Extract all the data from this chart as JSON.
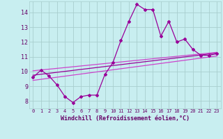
{
  "xlabel": "Windchill (Refroidissement éolien,°C)",
  "xlim": [
    -0.5,
    23.5
  ],
  "ylim": [
    7.5,
    14.75
  ],
  "yticks": [
    8,
    9,
    10,
    11,
    12,
    13,
    14
  ],
  "xticks": [
    0,
    1,
    2,
    3,
    4,
    5,
    6,
    7,
    8,
    9,
    10,
    11,
    12,
    13,
    14,
    15,
    16,
    17,
    18,
    19,
    20,
    21,
    22,
    23
  ],
  "bg_color": "#c8eef0",
  "grid_color": "#a8cece",
  "line_color": "#990099",
  "line_color2": "#cc44cc",
  "series1_x": [
    0,
    1,
    2,
    3,
    4,
    5,
    6,
    7,
    8,
    9,
    10,
    11,
    12,
    13,
    14,
    15,
    16,
    17,
    18,
    19,
    20,
    21,
    22,
    23
  ],
  "series1_y": [
    9.6,
    10.1,
    9.7,
    9.1,
    8.3,
    7.9,
    8.3,
    8.4,
    8.4,
    9.8,
    10.6,
    12.1,
    13.4,
    14.55,
    14.2,
    14.2,
    12.4,
    13.4,
    12.0,
    12.2,
    11.5,
    11.1,
    11.1,
    11.2
  ],
  "series2_x": [
    0,
    23
  ],
  "series2_y": [
    9.75,
    11.25
  ],
  "series3_x": [
    0,
    23
  ],
  "series3_y": [
    10.05,
    11.3
  ],
  "series4_x": [
    0,
    23
  ],
  "series4_y": [
    9.4,
    11.05
  ]
}
